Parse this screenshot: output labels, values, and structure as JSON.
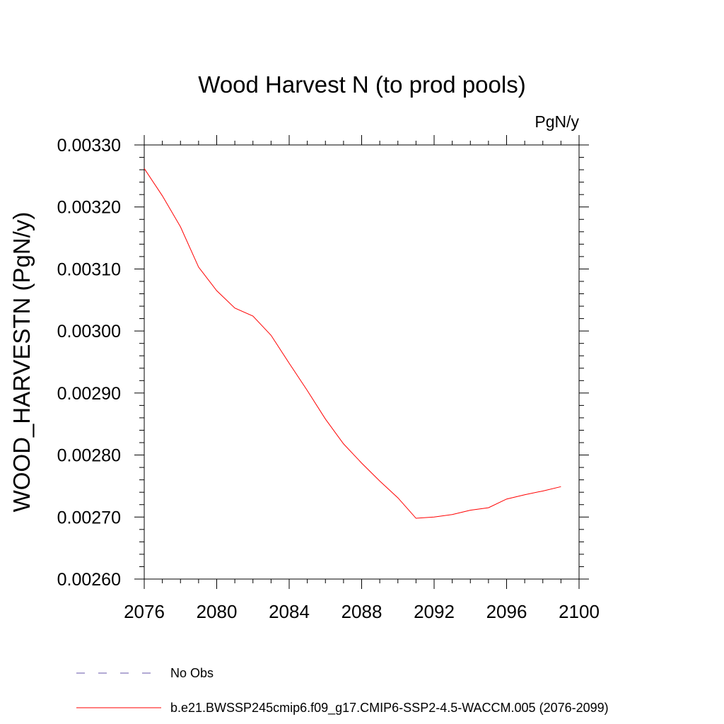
{
  "chart_data": {
    "type": "line",
    "title": "Wood Harvest N (to prod pools)",
    "units": "PgN/y",
    "ylabel": "WOOD_HARVESTN  (PgN/y)",
    "xlabel": "",
    "xlim": [
      2076,
      2100
    ],
    "ylim": [
      0.0026,
      0.0033
    ],
    "x_ticks": [
      2076,
      2080,
      2084,
      2088,
      2092,
      2096,
      2100
    ],
    "x_tick_labels": [
      "2076",
      "2080",
      "2084",
      "2088",
      "2092",
      "2096",
      "2100"
    ],
    "y_ticks": [
      0.0026,
      0.0027,
      0.0028,
      0.0029,
      0.003,
      0.0031,
      0.0032,
      0.0033
    ],
    "y_tick_labels": [
      "0.00260",
      "0.00270",
      "0.00280",
      "0.00290",
      "0.00300",
      "0.00310",
      "0.00320",
      "0.00330"
    ],
    "grid": false,
    "series": [
      {
        "name": "b.e21.BWSSP245cmip6.f09_g17.CMIP6-SSP2-4.5-WACCM.005 (2076-2099)",
        "color": "#ff0000",
        "dash": "solid",
        "x": [
          2076,
          2077,
          2078,
          2079,
          2080,
          2081,
          2082,
          2083,
          2084,
          2085,
          2086,
          2087,
          2088,
          2089,
          2090,
          2091,
          2092,
          2093,
          2094,
          2095,
          2096,
          2097,
          2098,
          2099
        ],
        "y": [
          0.003262,
          0.003218,
          0.003168,
          0.003103,
          0.003065,
          0.003037,
          0.003024,
          0.002993,
          0.002948,
          0.002904,
          0.002858,
          0.002818,
          0.002787,
          0.002758,
          0.002731,
          0.002698,
          0.0027,
          0.002704,
          0.002711,
          0.002715,
          0.002729,
          0.002736,
          0.002742,
          0.002749
        ]
      }
    ],
    "legend": {
      "placement": "bottom",
      "entries": [
        {
          "label": "No Obs",
          "color": "#6655aa",
          "dash": "dashed"
        },
        {
          "label": "b.e21.BWSSP245cmip6.f09_g17.CMIP6-SSP2-4.5-WACCM.005 (2076-2099)",
          "color": "#ff0000",
          "dash": "solid"
        }
      ]
    }
  }
}
